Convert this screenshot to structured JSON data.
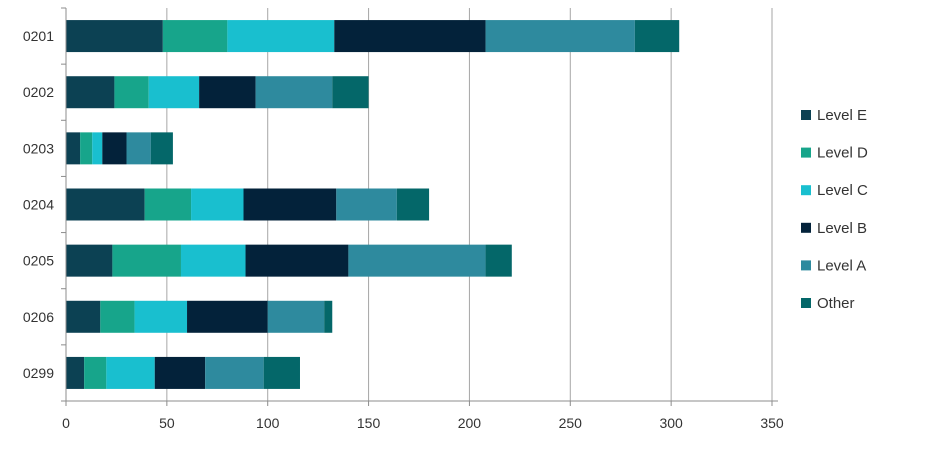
{
  "chart_data": {
    "type": "bar",
    "orientation": "horizontal",
    "stacked": true,
    "categories": [
      "0201",
      "0202",
      "0203",
      "0204",
      "0205",
      "0206",
      "0299"
    ],
    "series": [
      {
        "name": "Level E",
        "color": "#0c4153",
        "values": [
          48,
          24,
          7,
          39,
          23,
          17,
          9
        ]
      },
      {
        "name": "Level D",
        "color": "#17a58b",
        "values": [
          32,
          17,
          6,
          23,
          34,
          17,
          11
        ]
      },
      {
        "name": "Level C",
        "color": "#19bfcf",
        "values": [
          53,
          25,
          5,
          26,
          32,
          26,
          24
        ]
      },
      {
        "name": "Level B",
        "color": "#03223a",
        "values": [
          75,
          28,
          12,
          46,
          51,
          40,
          25
        ]
      },
      {
        "name": "Level A",
        "color": "#2e8a9e",
        "values": [
          74,
          38,
          12,
          30,
          68,
          28,
          29
        ]
      },
      {
        "name": "Other",
        "color": "#046769",
        "values": [
          22,
          18,
          11,
          16,
          13,
          4,
          18
        ]
      }
    ],
    "xlim": [
      0,
      350
    ],
    "xticks": [
      0,
      50,
      100,
      150,
      200,
      250,
      300,
      350
    ],
    "xtick_labels": [
      "0",
      "50",
      "100",
      "150",
      "200",
      "250",
      "300",
      "350"
    ],
    "grid": "vertical",
    "legend": "right",
    "title": "",
    "xlabel": "",
    "ylabel": ""
  }
}
